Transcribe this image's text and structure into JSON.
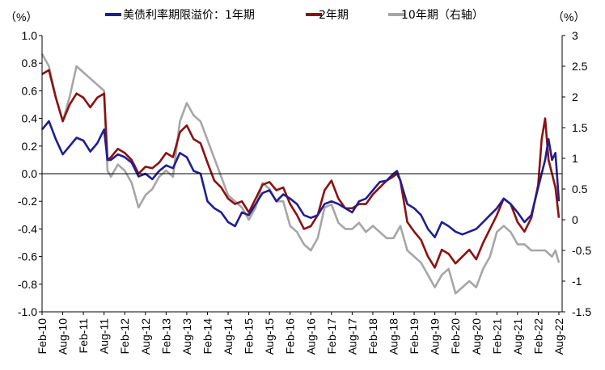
{
  "chart_data": {
    "type": "line",
    "title": "",
    "y_unit_left": "（%）",
    "y_unit_right": "（%）",
    "left_axis": {
      "min": -1.0,
      "max": 1.0,
      "step": 0.2,
      "tick_labels": [
        "1.0",
        "0.8",
        "0.6",
        "0.4",
        "0.2",
        "0.0",
        "-0.2",
        "-0.4",
        "-0.6",
        "-0.8",
        "-1.0"
      ]
    },
    "right_axis": {
      "min": -1.5,
      "max": 3.0,
      "step": 0.5,
      "tick_labels": [
        "3",
        "2.5",
        "2",
        "1.5",
        "1",
        "0.5",
        "0",
        "-0.5",
        "-1",
        "-1.5"
      ]
    },
    "x_ticks": [
      "Feb-10",
      "Aug-10",
      "Feb-11",
      "Aug-11",
      "Feb-12",
      "Aug-12",
      "Feb-13",
      "Aug-13",
      "Feb-14",
      "Aug-14",
      "Feb-15",
      "Aug-15",
      "Feb-16",
      "Aug-16",
      "Feb-17",
      "Aug-17",
      "Feb-18",
      "Aug-18",
      "Feb-19",
      "Aug-19",
      "Feb-20",
      "Aug-20",
      "Feb-21",
      "Aug-21",
      "Feb-22",
      "Aug-22"
    ],
    "grid": false,
    "legend_position": "top",
    "series": [
      {
        "name": "美债利率期限溢价：1年期",
        "axis": "left",
        "color": "#1f1f8f",
        "points": [
          [
            "Feb-10",
            0.32
          ],
          [
            "Apr-10",
            0.38
          ],
          [
            "Jun-10",
            0.25
          ],
          [
            "Aug-10",
            0.14
          ],
          [
            "Oct-10",
            0.2
          ],
          [
            "Dec-10",
            0.26
          ],
          [
            "Feb-11",
            0.24
          ],
          [
            "Apr-11",
            0.16
          ],
          [
            "Jun-11",
            0.22
          ],
          [
            "Aug-11",
            0.32
          ],
          [
            "Sep-11",
            0.1
          ],
          [
            "Oct-11",
            0.1
          ],
          [
            "Dec-11",
            0.14
          ],
          [
            "Feb-12",
            0.12
          ],
          [
            "Apr-12",
            0.08
          ],
          [
            "Jun-12",
            -0.02
          ],
          [
            "Aug-12",
            0.0
          ],
          [
            "Oct-12",
            -0.04
          ],
          [
            "Dec-12",
            0.02
          ],
          [
            "Feb-13",
            0.06
          ],
          [
            "Apr-13",
            0.04
          ],
          [
            "Jun-13",
            0.15
          ],
          [
            "Aug-13",
            0.12
          ],
          [
            "Oct-13",
            0.02
          ],
          [
            "Dec-13",
            0.0
          ],
          [
            "Feb-14",
            -0.2
          ],
          [
            "Apr-14",
            -0.25
          ],
          [
            "Jun-14",
            -0.28
          ],
          [
            "Aug-14",
            -0.35
          ],
          [
            "Oct-14",
            -0.38
          ],
          [
            "Dec-14",
            -0.28
          ],
          [
            "Feb-15",
            -0.3
          ],
          [
            "Apr-15",
            -0.22
          ],
          [
            "Jun-15",
            -0.14
          ],
          [
            "Aug-15",
            -0.12
          ],
          [
            "Oct-15",
            -0.2
          ],
          [
            "Dec-15",
            -0.15
          ],
          [
            "Feb-16",
            -0.18
          ],
          [
            "Apr-16",
            -0.22
          ],
          [
            "Jun-16",
            -0.3
          ],
          [
            "Aug-16",
            -0.32
          ],
          [
            "Oct-16",
            -0.3
          ],
          [
            "Dec-16",
            -0.22
          ],
          [
            "Feb-17",
            -0.2
          ],
          [
            "Apr-17",
            -0.22
          ],
          [
            "Jun-17",
            -0.25
          ],
          [
            "Aug-17",
            -0.28
          ],
          [
            "Oct-17",
            -0.2
          ],
          [
            "Dec-17",
            -0.18
          ],
          [
            "Feb-18",
            -0.12
          ],
          [
            "Apr-18",
            -0.06
          ],
          [
            "Jun-18",
            -0.05
          ],
          [
            "Aug-18",
            0.0
          ],
          [
            "Sep-18",
            0.02
          ],
          [
            "Oct-18",
            -0.05
          ],
          [
            "Dec-18",
            -0.22
          ],
          [
            "Feb-19",
            -0.25
          ],
          [
            "Apr-19",
            -0.3
          ],
          [
            "Jun-19",
            -0.4
          ],
          [
            "Aug-19",
            -0.46
          ],
          [
            "Oct-19",
            -0.35
          ],
          [
            "Dec-19",
            -0.38
          ],
          [
            "Feb-20",
            -0.42
          ],
          [
            "Apr-20",
            -0.44
          ],
          [
            "Jun-20",
            -0.42
          ],
          [
            "Aug-20",
            -0.4
          ],
          [
            "Oct-20",
            -0.35
          ],
          [
            "Dec-20",
            -0.3
          ],
          [
            "Feb-21",
            -0.25
          ],
          [
            "Apr-21",
            -0.18
          ],
          [
            "Jun-21",
            -0.22
          ],
          [
            "Aug-21",
            -0.28
          ],
          [
            "Oct-21",
            -0.35
          ],
          [
            "Dec-21",
            -0.3
          ],
          [
            "Feb-22",
            -0.1
          ],
          [
            "Apr-22",
            0.1
          ],
          [
            "May-22",
            0.25
          ],
          [
            "Jun-22",
            0.1
          ],
          [
            "Jul-22",
            0.15
          ],
          [
            "Aug-22",
            -0.2
          ]
        ]
      },
      {
        "name": "2年期",
        "axis": "left",
        "color": "#8b1111",
        "points": [
          [
            "Feb-10",
            0.72
          ],
          [
            "Apr-10",
            0.75
          ],
          [
            "Jun-10",
            0.55
          ],
          [
            "Aug-10",
            0.38
          ],
          [
            "Oct-10",
            0.5
          ],
          [
            "Dec-10",
            0.58
          ],
          [
            "Feb-11",
            0.55
          ],
          [
            "Apr-11",
            0.48
          ],
          [
            "Jun-11",
            0.55
          ],
          [
            "Aug-11",
            0.58
          ],
          [
            "Sep-11",
            0.1
          ],
          [
            "Oct-11",
            0.12
          ],
          [
            "Dec-11",
            0.18
          ],
          [
            "Feb-12",
            0.15
          ],
          [
            "Apr-12",
            0.1
          ],
          [
            "Jun-12",
            0.0
          ],
          [
            "Aug-12",
            0.05
          ],
          [
            "Oct-12",
            0.04
          ],
          [
            "Dec-12",
            0.08
          ],
          [
            "Feb-13",
            0.15
          ],
          [
            "Apr-13",
            0.12
          ],
          [
            "Jun-13",
            0.3
          ],
          [
            "Aug-13",
            0.35
          ],
          [
            "Oct-13",
            0.25
          ],
          [
            "Dec-13",
            0.22
          ],
          [
            "Feb-14",
            0.08
          ],
          [
            "Apr-14",
            -0.05
          ],
          [
            "Jun-14",
            -0.1
          ],
          [
            "Aug-14",
            -0.18
          ],
          [
            "Oct-14",
            -0.22
          ],
          [
            "Dec-14",
            -0.2
          ],
          [
            "Feb-15",
            -0.28
          ],
          [
            "Apr-15",
            -0.18
          ],
          [
            "Jun-15",
            -0.08
          ],
          [
            "Aug-15",
            -0.06
          ],
          [
            "Oct-15",
            -0.12
          ],
          [
            "Dec-15",
            -0.1
          ],
          [
            "Feb-16",
            -0.22
          ],
          [
            "Apr-16",
            -0.3
          ],
          [
            "Jun-16",
            -0.4
          ],
          [
            "Aug-16",
            -0.38
          ],
          [
            "Oct-16",
            -0.3
          ],
          [
            "Dec-16",
            -0.12
          ],
          [
            "Feb-17",
            -0.05
          ],
          [
            "Apr-17",
            -0.18
          ],
          [
            "Jun-17",
            -0.25
          ],
          [
            "Aug-17",
            -0.25
          ],
          [
            "Oct-17",
            -0.22
          ],
          [
            "Dec-17",
            -0.22
          ],
          [
            "Feb-18",
            -0.15
          ],
          [
            "Apr-18",
            -0.1
          ],
          [
            "Jun-18",
            -0.05
          ],
          [
            "Aug-18",
            -0.02
          ],
          [
            "Sep-18",
            0.0
          ],
          [
            "Oct-18",
            -0.05
          ],
          [
            "Dec-18",
            -0.35
          ],
          [
            "Feb-19",
            -0.42
          ],
          [
            "Apr-19",
            -0.48
          ],
          [
            "Jun-19",
            -0.6
          ],
          [
            "Aug-19",
            -0.68
          ],
          [
            "Oct-19",
            -0.55
          ],
          [
            "Dec-19",
            -0.58
          ],
          [
            "Feb-20",
            -0.65
          ],
          [
            "Apr-20",
            -0.6
          ],
          [
            "Jun-20",
            -0.55
          ],
          [
            "Aug-20",
            -0.62
          ],
          [
            "Oct-20",
            -0.5
          ],
          [
            "Dec-20",
            -0.4
          ],
          [
            "Feb-21",
            -0.3
          ],
          [
            "Apr-21",
            -0.18
          ],
          [
            "Jun-21",
            -0.22
          ],
          [
            "Aug-21",
            -0.35
          ],
          [
            "Oct-21",
            -0.42
          ],
          [
            "Dec-21",
            -0.32
          ],
          [
            "Feb-22",
            -0.08
          ],
          [
            "Mar-22",
            0.25
          ],
          [
            "Apr-22",
            0.4
          ],
          [
            "May-22",
            0.1
          ],
          [
            "Jun-22",
            0.0
          ],
          [
            "Jul-22",
            -0.1
          ],
          [
            "Aug-22",
            -0.32
          ]
        ]
      },
      {
        "name": "10年期（右轴）",
        "axis": "right",
        "color": "#a6a6a6",
        "points": [
          [
            "Feb-10",
            2.7
          ],
          [
            "Apr-10",
            2.5
          ],
          [
            "Jun-10",
            2.0
          ],
          [
            "Aug-10",
            1.6
          ],
          [
            "Oct-10",
            2.0
          ],
          [
            "Dec-10",
            2.5
          ],
          [
            "Feb-11",
            2.4
          ],
          [
            "Apr-11",
            2.3
          ],
          [
            "Jun-11",
            2.2
          ],
          [
            "Aug-11",
            2.1
          ],
          [
            "Sep-11",
            0.8
          ],
          [
            "Oct-11",
            0.7
          ],
          [
            "Dec-11",
            0.9
          ],
          [
            "Feb-12",
            0.8
          ],
          [
            "Apr-12",
            0.6
          ],
          [
            "Jun-12",
            0.2
          ],
          [
            "Aug-12",
            0.4
          ],
          [
            "Oct-12",
            0.5
          ],
          [
            "Dec-12",
            0.7
          ],
          [
            "Feb-13",
            0.8
          ],
          [
            "Apr-13",
            0.7
          ],
          [
            "Jun-13",
            1.6
          ],
          [
            "Aug-13",
            1.9
          ],
          [
            "Oct-13",
            1.7
          ],
          [
            "Dec-13",
            1.6
          ],
          [
            "Feb-14",
            1.3
          ],
          [
            "Apr-14",
            1.0
          ],
          [
            "Jun-14",
            0.7
          ],
          [
            "Aug-14",
            0.4
          ],
          [
            "Oct-14",
            0.3
          ],
          [
            "Dec-14",
            0.2
          ],
          [
            "Feb-15",
            0.0
          ],
          [
            "Apr-15",
            0.2
          ],
          [
            "Jun-15",
            0.6
          ],
          [
            "Aug-15",
            0.5
          ],
          [
            "Oct-15",
            0.3
          ],
          [
            "Dec-15",
            0.3
          ],
          [
            "Feb-16",
            -0.1
          ],
          [
            "Apr-16",
            -0.2
          ],
          [
            "Jun-16",
            -0.4
          ],
          [
            "Aug-16",
            -0.5
          ],
          [
            "Oct-16",
            -0.3
          ],
          [
            "Dec-16",
            0.2
          ],
          [
            "Feb-17",
            0.25
          ],
          [
            "Apr-17",
            -0.05
          ],
          [
            "Jun-17",
            -0.15
          ],
          [
            "Aug-17",
            -0.15
          ],
          [
            "Oct-17",
            -0.05
          ],
          [
            "Dec-17",
            -0.2
          ],
          [
            "Feb-18",
            -0.1
          ],
          [
            "Apr-18",
            -0.2
          ],
          [
            "Jun-18",
            -0.3
          ],
          [
            "Aug-18",
            -0.3
          ],
          [
            "Sep-18",
            -0.2
          ],
          [
            "Oct-18",
            -0.1
          ],
          [
            "Dec-18",
            -0.5
          ],
          [
            "Feb-19",
            -0.6
          ],
          [
            "Apr-19",
            -0.7
          ],
          [
            "Jun-19",
            -0.9
          ],
          [
            "Aug-19",
            -1.1
          ],
          [
            "Oct-19",
            -0.9
          ],
          [
            "Dec-19",
            -0.8
          ],
          [
            "Feb-20",
            -1.2
          ],
          [
            "Apr-20",
            -1.1
          ],
          [
            "Jun-20",
            -1.0
          ],
          [
            "Aug-20",
            -1.1
          ],
          [
            "Oct-20",
            -0.8
          ],
          [
            "Dec-20",
            -0.6
          ],
          [
            "Feb-21",
            -0.2
          ],
          [
            "Apr-21",
            -0.1
          ],
          [
            "Jun-21",
            -0.2
          ],
          [
            "Aug-21",
            -0.4
          ],
          [
            "Oct-21",
            -0.4
          ],
          [
            "Dec-21",
            -0.5
          ],
          [
            "Feb-22",
            -0.5
          ],
          [
            "Apr-22",
            -0.5
          ],
          [
            "Jun-22",
            -0.6
          ],
          [
            "Jul-22",
            -0.5
          ],
          [
            "Aug-22",
            -0.7
          ]
        ]
      }
    ]
  }
}
